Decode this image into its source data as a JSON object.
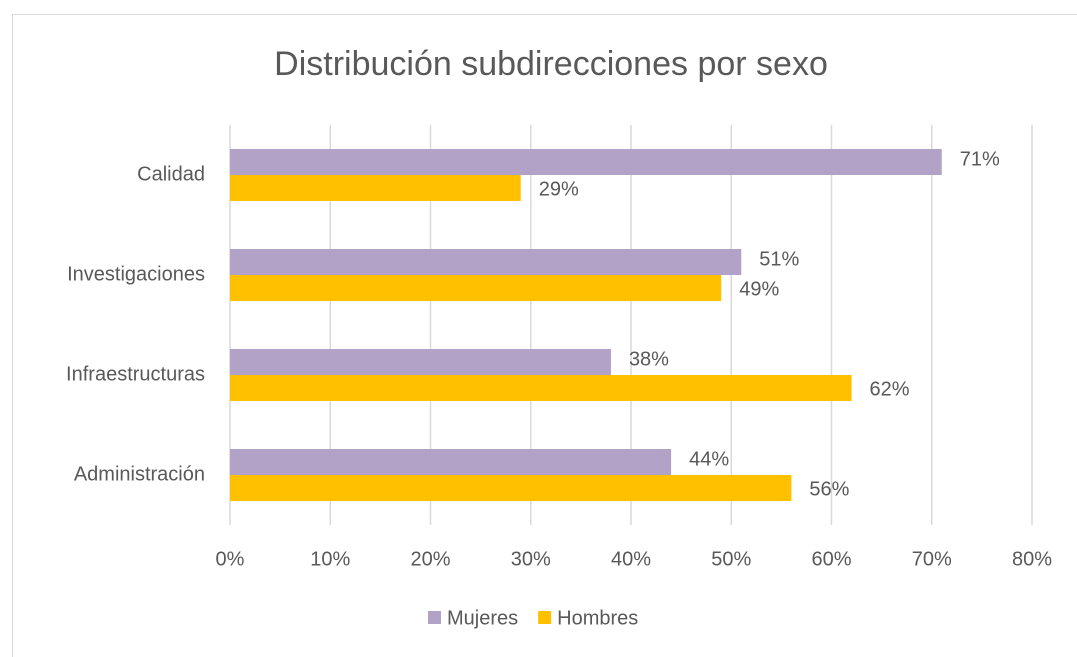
{
  "chart_data": {
    "type": "bar",
    "orientation": "horizontal",
    "title": "Distribución subdirecciones por sexo",
    "categories": [
      "Calidad",
      "Investigaciones",
      "Infraestructuras",
      "Administración"
    ],
    "series": [
      {
        "name": "Mujeres",
        "color": "#b3a2c7",
        "values": [
          71,
          51,
          38,
          44
        ],
        "value_labels": [
          "71%",
          "51%",
          "38%",
          "44%"
        ]
      },
      {
        "name": "Hombres",
        "color": "#ffc000",
        "values": [
          29,
          49,
          62,
          56
        ],
        "value_labels": [
          "29%",
          "49%",
          "62%",
          "56%"
        ]
      }
    ],
    "xlim": [
      0,
      80
    ],
    "xticks": [
      {
        "value": 0,
        "label": "0%"
      },
      {
        "value": 10,
        "label": "10%"
      },
      {
        "value": 20,
        "label": "20%"
      },
      {
        "value": 30,
        "label": "30%"
      },
      {
        "value": 40,
        "label": "40%"
      },
      {
        "value": 50,
        "label": "50%"
      },
      {
        "value": 60,
        "label": "60%"
      },
      {
        "value": 70,
        "label": "70%"
      },
      {
        "value": 80,
        "label": "80%"
      }
    ],
    "grid": true,
    "legend": "bottom"
  }
}
